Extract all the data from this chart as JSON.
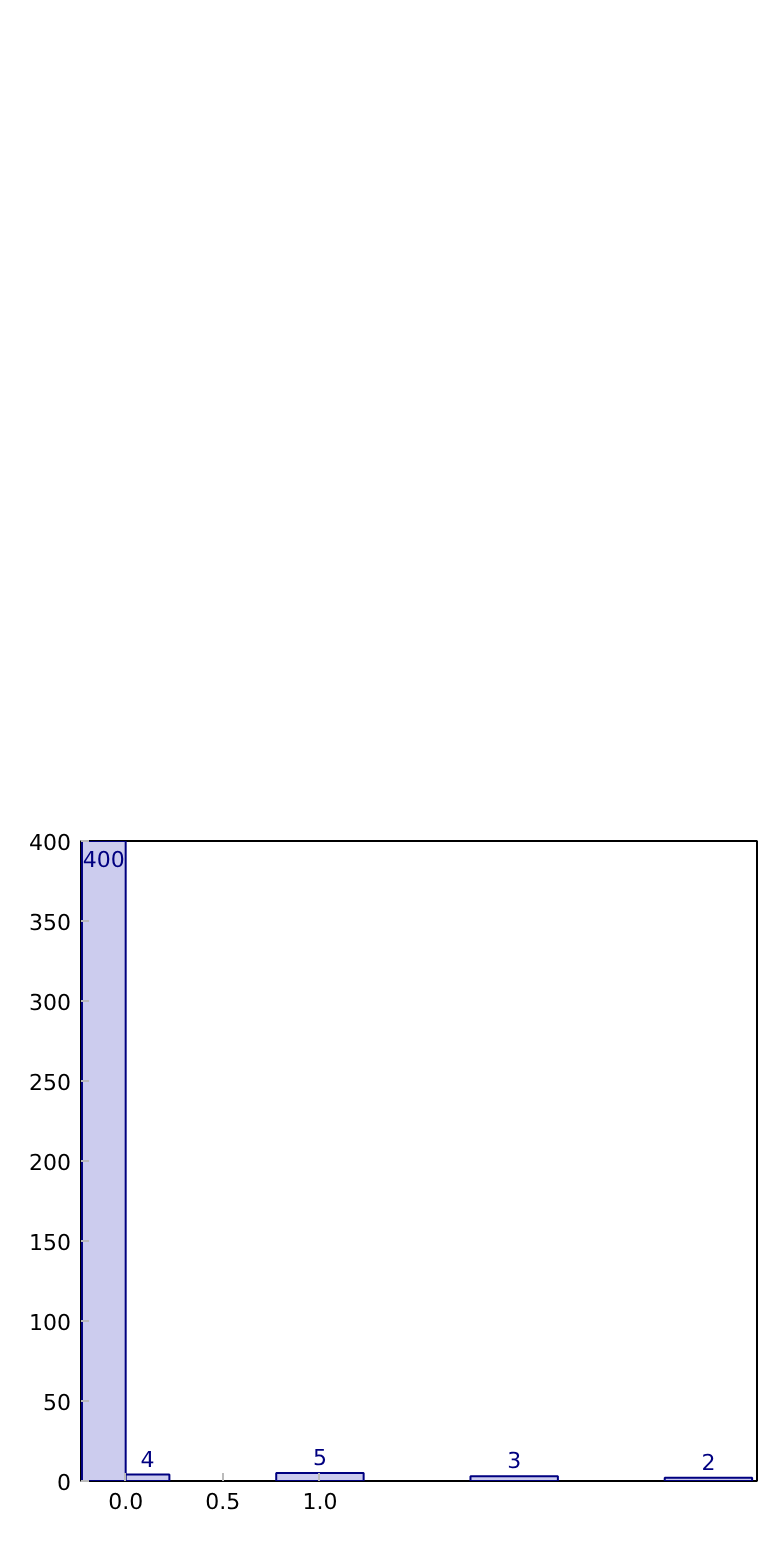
{
  "chart_data": {
    "type": "bar",
    "data_labels": true,
    "grid": false,
    "series": [
      {
        "color": "#ccccee",
        "x": [
          0
        ],
        "values": [
          400
        ]
      },
      {
        "color": "#ccccee",
        "x": [
          0,
          1,
          2,
          3
        ],
        "values": [
          4,
          5,
          3,
          2
        ]
      }
    ],
    "xlim": [
      -0.23,
      3.25
    ],
    "xticks": [
      {
        "value": 0,
        "label": "0.0"
      },
      {
        "value": 0.5,
        "label": "0.5"
      },
      {
        "value": 1,
        "label": "1.0"
      }
    ],
    "ylim": [
      0,
      400
    ],
    "yticks": [
      0,
      50,
      100,
      150,
      200,
      250,
      300,
      350,
      400
    ]
  }
}
